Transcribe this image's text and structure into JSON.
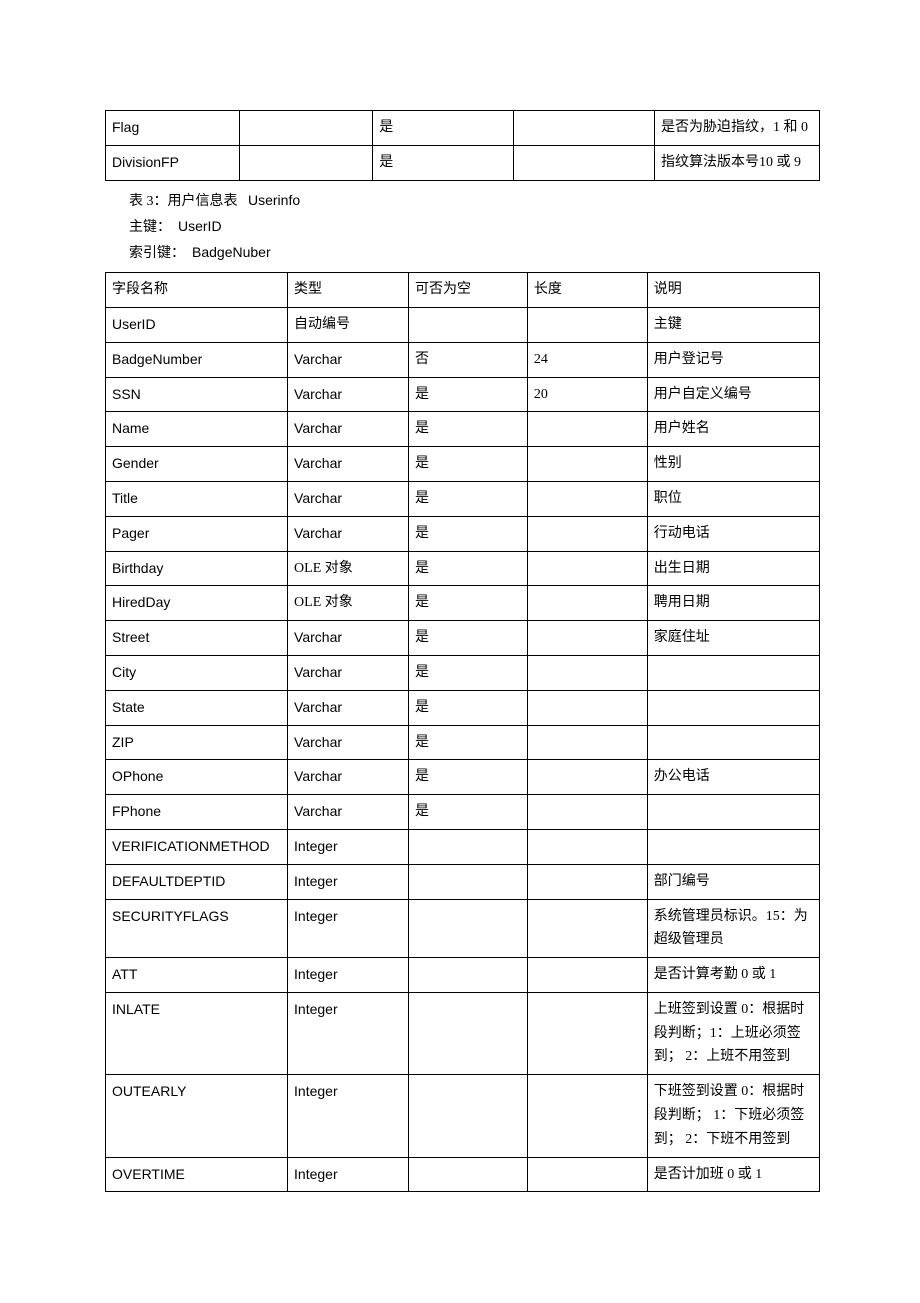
{
  "table1": {
    "columns": 5,
    "rows": [
      {
        "c1": "Flag",
        "c2": "",
        "c3": "是",
        "c4": "",
        "c5": "是否为胁迫指纹，1 和 0",
        "c5_justify_line1": true
      },
      {
        "c1": "DivisionFP",
        "c2": "",
        "c3": "是",
        "c4": "",
        "c5": "指纹算法版本号10 或 9"
      }
    ]
  },
  "caption": {
    "line1_zh_a": "表 3：用户信息表",
    "line1_en_a": "Userinfo",
    "line2_zh_a": "主键：",
    "line2_en_a": "UserID",
    "line3_zh_a": "索引键：",
    "line3_en_a": "BadgeNuber"
  },
  "table2": {
    "header": {
      "c1": "字段名称",
      "c2": "类型",
      "c3": "可否为空",
      "c4": "长度",
      "c5": "说明"
    },
    "rows": [
      {
        "c1": "UserID",
        "c2": "自动编号",
        "c3": "",
        "c4": "",
        "c5": "主键"
      },
      {
        "c1": "BadgeNumber",
        "c2": "Varchar",
        "c3": "否",
        "c4": "24",
        "c5": "用户登记号"
      },
      {
        "c1": "SSN",
        "c2": "Varchar",
        "c3": "是",
        "c4": "20",
        "c5": "用户自定义编号"
      },
      {
        "c1": "Name",
        "c2": "Varchar",
        "c3": "是",
        "c4": "",
        "c5": "用户姓名"
      },
      {
        "c1": "Gender",
        "c2": "Varchar",
        "c3": "是",
        "c4": "",
        "c5": "性别"
      },
      {
        "c1": "Title",
        "c2": "Varchar",
        "c3": "是",
        "c4": "",
        "c5": "职位"
      },
      {
        "c1": "Pager",
        "c2": "Varchar",
        "c3": "是",
        "c4": "",
        "c5": "行动电话"
      },
      {
        "c1": "Birthday",
        "c2": "OLE 对象",
        "c3": "是",
        "c4": "",
        "c5": "出生日期"
      },
      {
        "c1": "HiredDay",
        "c2": "OLE 对象",
        "c3": "是",
        "c4": "",
        "c5": "聘用日期"
      },
      {
        "c1": "Street",
        "c2": "Varchar",
        "c3": "是",
        "c4": "",
        "c5": "家庭住址"
      },
      {
        "c1": "City",
        "c2": "Varchar",
        "c3": "是",
        "c4": "",
        "c5": ""
      },
      {
        "c1": "State",
        "c2": "Varchar",
        "c3": "是",
        "c4": "",
        "c5": ""
      },
      {
        "c1": "ZIP",
        "c2": "Varchar",
        "c3": "是",
        "c4": "",
        "c5": ""
      },
      {
        "c1": "OPhone",
        "c2": "Varchar",
        "c3": "是",
        "c4": "",
        "c5": "办公电话"
      },
      {
        "c1": "FPhone",
        "c2": "Varchar",
        "c3": "是",
        "c4": "",
        "c5": ""
      },
      {
        "c1": "VERIFICATIONMETHOD",
        "c2": "Integer",
        "c3": "",
        "c4": "",
        "c5": ""
      },
      {
        "c1": "DEFAULTDEPTID",
        "c2": "Integer",
        "c3": "",
        "c4": "",
        "c5": "部门编号"
      },
      {
        "c1": "SECURITYFLAGS",
        "c2": "Integer",
        "c3": "",
        "c4": "",
        "c5": "系统管理员标识。15：为超级管理员"
      },
      {
        "c1": "ATT",
        "c2": "Integer",
        "c3": "",
        "c4": "",
        "c5": "是否计算考勤 0 或 1"
      },
      {
        "c1": "INLATE",
        "c2": "Integer",
        "c3": "",
        "c4": "",
        "c5": "上班签到设置  0：根据时段判断；1：上班必须签到；  2：上班不用签到"
      },
      {
        "c1": "OUTEARLY",
        "c2": "Integer",
        "c3": "",
        "c4": "",
        "c5": "下班签到设置  0：根据时段判断； 1：下班必须签到；  2：下班不用签到"
      },
      {
        "c1": "OVERTIME",
        "c2": "Integer",
        "c3": "",
        "c4": "",
        "c5": "是否计加班   0 或 1"
      }
    ]
  }
}
